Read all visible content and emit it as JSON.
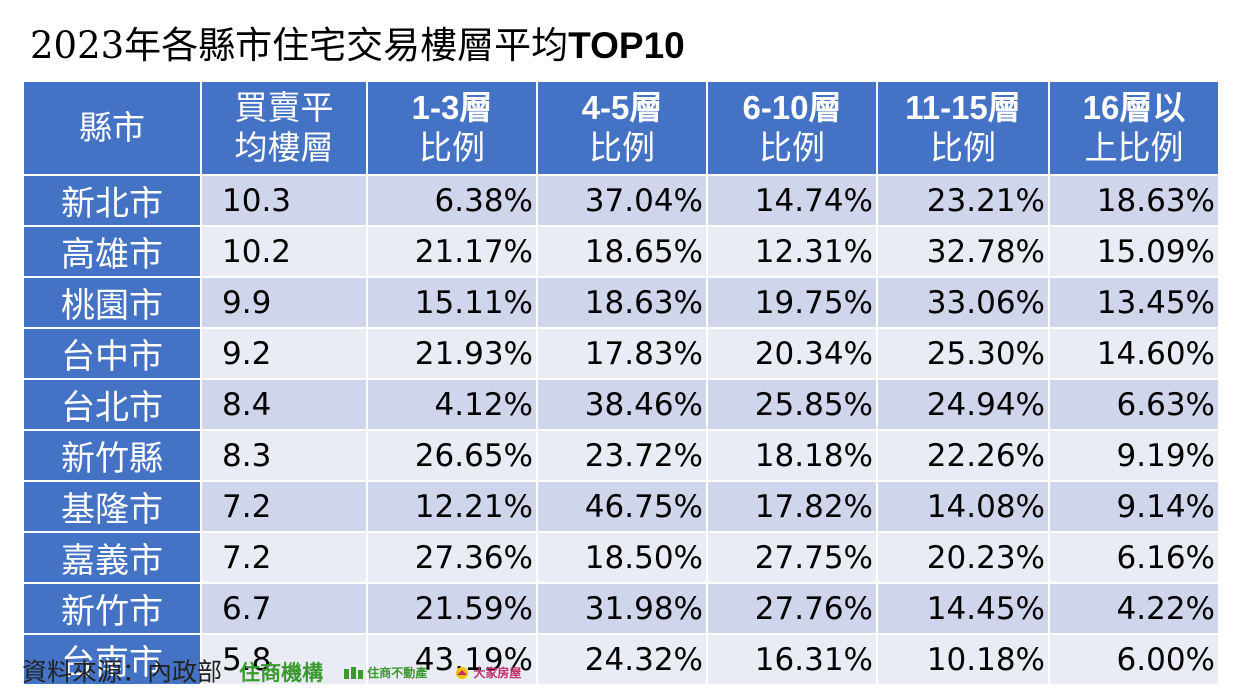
{
  "title_prefix": "2023年各縣市住宅交易樓層平均",
  "title_suffix": "TOP10",
  "chart_data": {
    "type": "table",
    "columns": [
      [
        "縣市"
      ],
      [
        "買賣平",
        "均樓層"
      ],
      [
        "1-3層",
        "比例"
      ],
      [
        "4-5層",
        "比例"
      ],
      [
        "6-10層",
        "比例"
      ],
      [
        "11-15層",
        "比例"
      ],
      [
        "16層以",
        "上比例"
      ]
    ],
    "rows": [
      {
        "county": "新北市",
        "avg": "10.3",
        "pct": [
          "6.38%",
          "37.04%",
          "14.74%",
          "23.21%",
          "18.63%"
        ]
      },
      {
        "county": "高雄市",
        "avg": "10.2",
        "pct": [
          "21.17%",
          "18.65%",
          "12.31%",
          "32.78%",
          "15.09%"
        ]
      },
      {
        "county": "桃園市",
        "avg": "9.9",
        "pct": [
          "15.11%",
          "18.63%",
          "19.75%",
          "33.06%",
          "13.45%"
        ]
      },
      {
        "county": "台中市",
        "avg": "9.2",
        "pct": [
          "21.93%",
          "17.83%",
          "20.34%",
          "25.30%",
          "14.60%"
        ]
      },
      {
        "county": "台北市",
        "avg": "8.4",
        "pct": [
          "4.12%",
          "38.46%",
          "25.85%",
          "24.94%",
          "6.63%"
        ]
      },
      {
        "county": "新竹縣",
        "avg": "8.3",
        "pct": [
          "26.65%",
          "23.72%",
          "18.18%",
          "22.26%",
          "9.19%"
        ]
      },
      {
        "county": "基隆市",
        "avg": "7.2",
        "pct": [
          "12.21%",
          "46.75%",
          "17.82%",
          "14.08%",
          "9.14%"
        ]
      },
      {
        "county": "嘉義市",
        "avg": "7.2",
        "pct": [
          "27.36%",
          "18.50%",
          "27.75%",
          "20.23%",
          "6.16%"
        ]
      },
      {
        "county": "新竹市",
        "avg": "6.7",
        "pct": [
          "21.59%",
          "31.98%",
          "27.76%",
          "14.45%",
          "4.22%"
        ]
      },
      {
        "county": "台南市",
        "avg": "5.8",
        "pct": [
          "43.19%",
          "24.32%",
          "16.31%",
          "10.18%",
          "6.00%"
        ]
      }
    ],
    "colors": {
      "header": "#4472C4",
      "row_odd": "#CFD5EA",
      "row_even": "#E9EBF5"
    }
  },
  "footer": {
    "source": "資料來源：內政部",
    "brand1": "住商機構",
    "brand2": "住商不動產",
    "brand3": "大家房屋"
  }
}
